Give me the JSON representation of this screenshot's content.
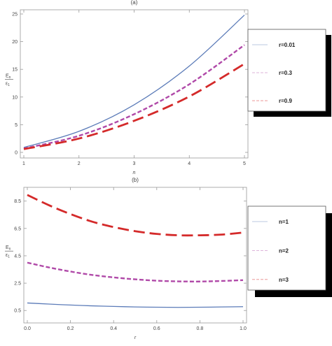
{
  "chart_data": [
    {
      "type": "line",
      "title": "(a)",
      "xlabel": "n",
      "ylabel": "E_n / ε_1",
      "xlim": [
        1,
        5
      ],
      "ylim": [
        0,
        25
      ],
      "x_ticks": [
        "1",
        "2",
        "3",
        "4",
        "5"
      ],
      "y_ticks": [
        "0",
        "5",
        "10",
        "15",
        "20",
        "25"
      ],
      "x_tick_values": [
        1,
        2,
        3,
        4,
        5
      ],
      "y_tick_values": [
        0,
        5,
        10,
        15,
        20,
        25
      ],
      "grid": false,
      "legend_position": "right",
      "series": [
        {
          "name": "r=0.01",
          "color": "#5b7bb8",
          "style": "solid",
          "x": [
            1,
            2,
            3,
            4,
            5
          ],
          "y": [
            0.9,
            3.8,
            8.6,
            15.6,
            24.8
          ]
        },
        {
          "name": "r=0.3",
          "color": "#b049a8",
          "style": "dashed",
          "x": [
            1,
            2,
            3,
            4,
            5
          ],
          "y": [
            0.7,
            3.0,
            6.9,
            12.3,
            19.4
          ]
        },
        {
          "name": "r=0.9",
          "color": "#d42a2a",
          "style": "long-dashed",
          "x": [
            1,
            2,
            3,
            4,
            5
          ],
          "y": [
            0.6,
            2.5,
            5.7,
            10.1,
            16.0
          ]
        }
      ]
    },
    {
      "type": "line",
      "title": "(b)",
      "xlabel": "r",
      "ylabel": "E_n / ε_1",
      "xlim": [
        0,
        1
      ],
      "ylim": [
        0,
        9.2
      ],
      "x_ticks": [
        "0.0",
        "0.2",
        "0.4",
        "0.6",
        "0.8",
        "1.0"
      ],
      "y_ticks": [
        "0.5",
        "2.5",
        "4.5",
        "6.5",
        "8.5"
      ],
      "x_tick_values": [
        0,
        0.2,
        0.4,
        0.6,
        0.8,
        1.0
      ],
      "y_tick_values": [
        0.5,
        2.5,
        4.5,
        6.5,
        8.5
      ],
      "grid": false,
      "legend_position": "right",
      "series": [
        {
          "name": "n=1",
          "color": "#5b7bb8",
          "style": "solid",
          "x": [
            0,
            0.1,
            0.2,
            0.3,
            0.4,
            0.5,
            0.6,
            0.7,
            0.8,
            0.9,
            1.0
          ],
          "y": [
            1.05,
            0.97,
            0.9,
            0.84,
            0.8,
            0.76,
            0.74,
            0.73,
            0.74,
            0.76,
            0.78
          ]
        },
        {
          "name": "n=2",
          "color": "#b049a8",
          "style": "dashed",
          "x": [
            0,
            0.1,
            0.2,
            0.3,
            0.4,
            0.5,
            0.6,
            0.7,
            0.8,
            0.9,
            1.0
          ],
          "y": [
            4.0,
            3.65,
            3.35,
            3.1,
            2.92,
            2.78,
            2.68,
            2.63,
            2.62,
            2.66,
            2.72
          ]
        },
        {
          "name": "n=3",
          "color": "#d42a2a",
          "style": "long-dashed",
          "x": [
            0,
            0.1,
            0.2,
            0.3,
            0.4,
            0.5,
            0.6,
            0.7,
            0.8,
            0.9,
            1.0
          ],
          "y": [
            8.95,
            8.2,
            7.55,
            7.0,
            6.6,
            6.3,
            6.1,
            6.0,
            6.0,
            6.05,
            6.2
          ]
        }
      ]
    }
  ],
  "ylabel_num": "E_n",
  "ylabel_den": "ε_1"
}
